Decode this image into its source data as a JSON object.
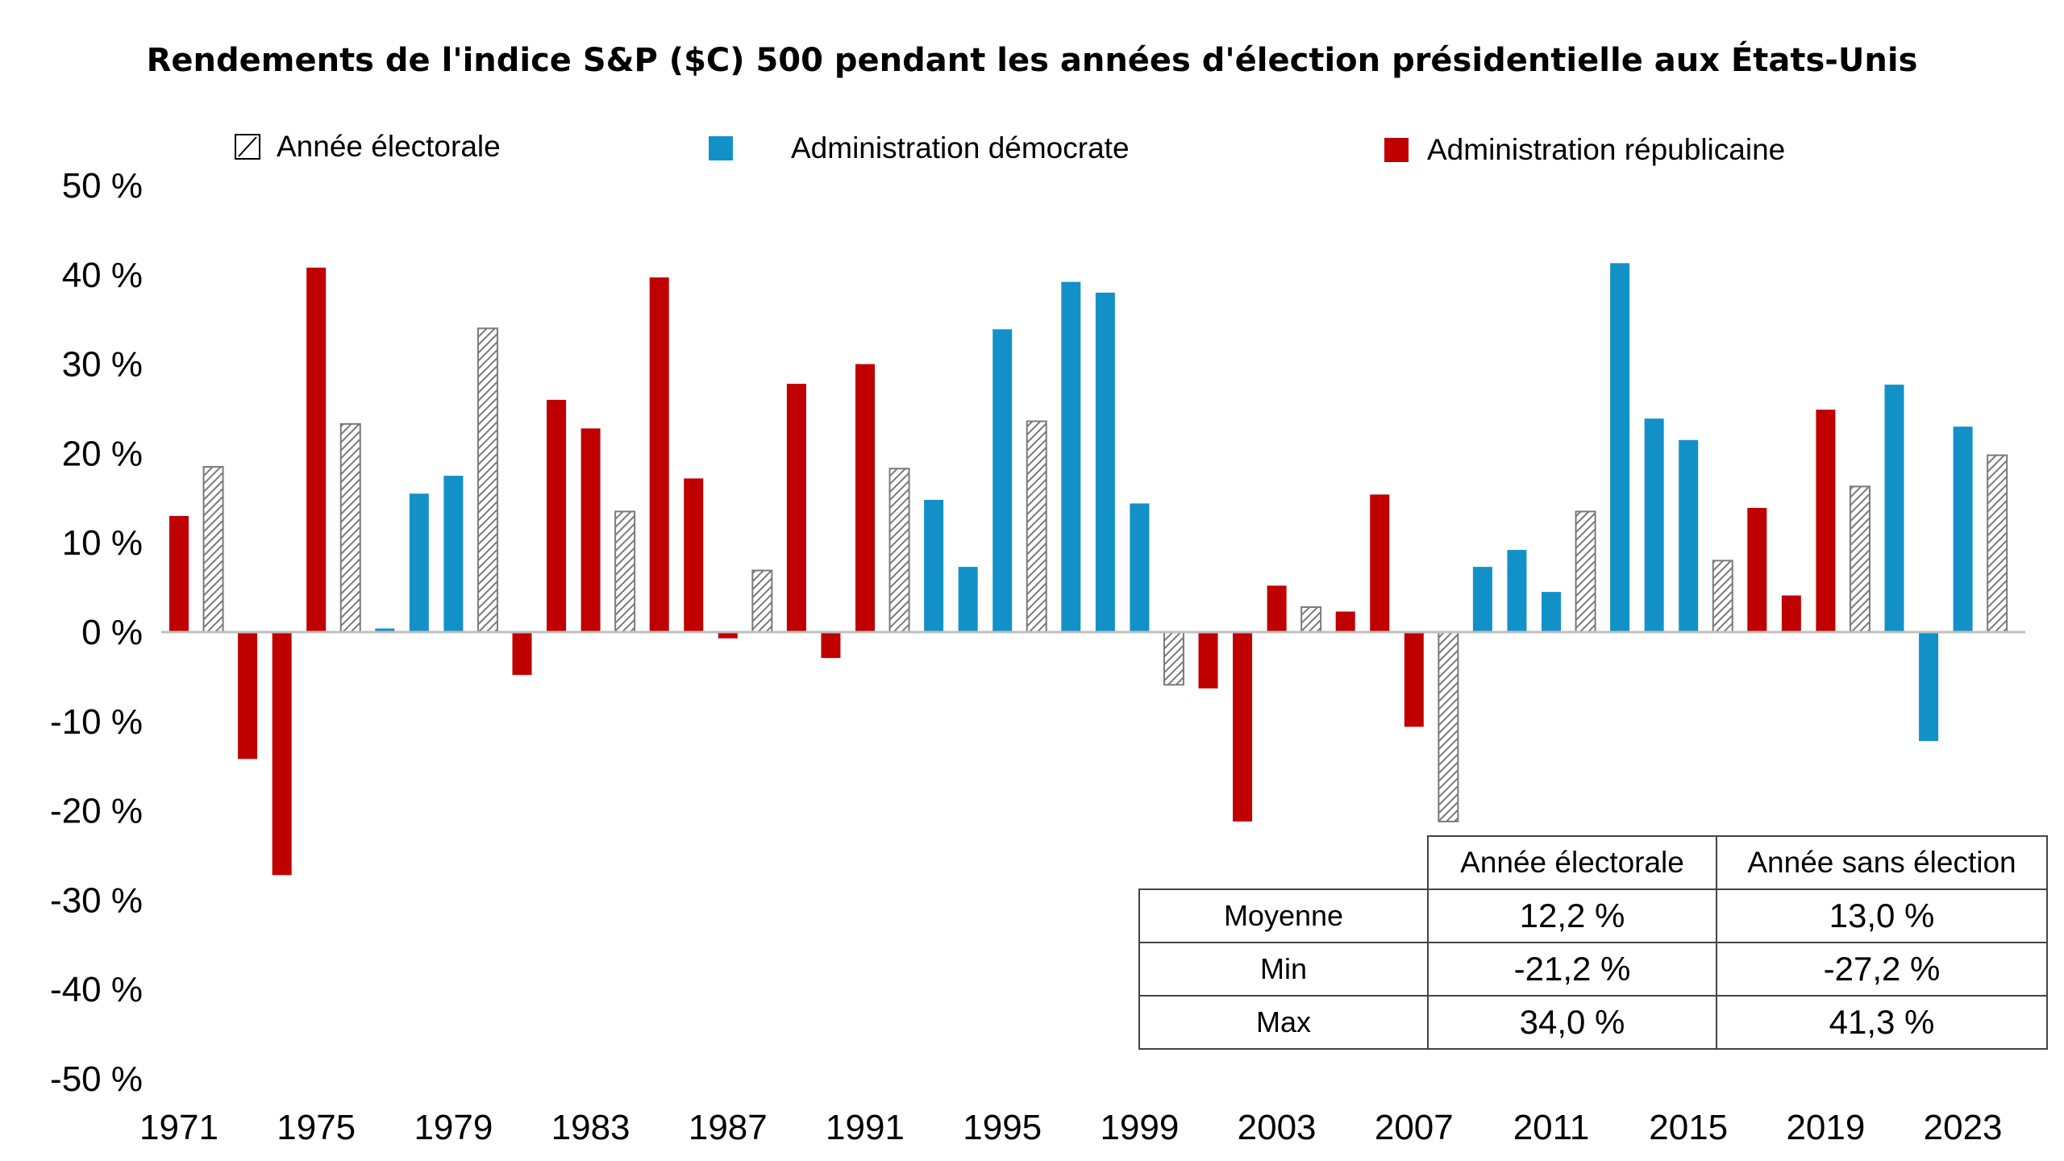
{
  "chart_data": {
    "type": "bar",
    "title": "Rendements de l'indice S&P ($C) 500 pendant les années d'élection présidentielle aux États-Unis",
    "ylim": [
      -50,
      50
    ],
    "yticks": [
      50,
      40,
      30,
      20,
      10,
      0,
      -10,
      -20,
      -30,
      -40,
      -50
    ],
    "ytick_labels": [
      "50 %",
      "40 %",
      "30 %",
      "20 %",
      "10 %",
      "0 %",
      "-10 %",
      "-20 %",
      "-30 %",
      "-40 %",
      "-50 %"
    ],
    "xtick_labels": [
      "1971",
      "1975",
      "1979",
      "1983",
      "1987",
      "1991",
      "1995",
      "1999",
      "2003",
      "2007",
      "2011",
      "2015",
      "2019",
      "2023"
    ],
    "legend": {
      "placement": "top",
      "items": [
        {
          "label": "Année électorale",
          "key": "E"
        },
        {
          "label": "Administration démocrate",
          "key": "D"
        },
        {
          "label": "Administration républicaine",
          "key": "R"
        }
      ]
    },
    "colors": {
      "D": "#1291c9",
      "R": "#c00000",
      "E_stroke": "#7a7a7a"
    },
    "years": [
      1971,
      1972,
      1973,
      1974,
      1975,
      1976,
      1977,
      1978,
      1979,
      1980,
      1981,
      1982,
      1983,
      1984,
      1985,
      1986,
      1987,
      1988,
      1989,
      1990,
      1991,
      1992,
      1993,
      1994,
      1995,
      1996,
      1997,
      1998,
      1999,
      2000,
      2001,
      2002,
      2003,
      2004,
      2005,
      2006,
      2007,
      2008,
      2009,
      2010,
      2011,
      2012,
      2013,
      2014,
      2015,
      2016,
      2017,
      2018,
      2019,
      2020,
      2021,
      2022,
      2023,
      2024
    ],
    "values": [
      13.0,
      18.5,
      -14.2,
      -27.2,
      40.8,
      23.3,
      0.4,
      15.5,
      17.5,
      34.0,
      -4.8,
      26.0,
      22.8,
      13.5,
      39.7,
      17.2,
      -0.7,
      6.9,
      27.8,
      -2.9,
      30.0,
      18.3,
      14.8,
      7.3,
      33.9,
      23.6,
      39.2,
      38.0,
      14.4,
      -5.9,
      -6.3,
      -21.2,
      5.2,
      2.8,
      2.3,
      15.4,
      -10.6,
      -21.2,
      7.3,
      9.2,
      4.5,
      13.5,
      41.3,
      23.9,
      21.5,
      8.0,
      13.9,
      4.1,
      24.9,
      16.3,
      27.7,
      -12.2,
      23.0,
      19.8
    ],
    "party": [
      "R",
      "E",
      "R",
      "R",
      "R",
      "E",
      "D",
      "D",
      "D",
      "E",
      "R",
      "R",
      "R",
      "E",
      "R",
      "R",
      "R",
      "E",
      "R",
      "R",
      "R",
      "E",
      "D",
      "D",
      "D",
      "E",
      "D",
      "D",
      "D",
      "E",
      "R",
      "R",
      "R",
      "E",
      "R",
      "R",
      "R",
      "E",
      "D",
      "D",
      "D",
      "E",
      "D",
      "D",
      "D",
      "E",
      "R",
      "R",
      "R",
      "E",
      "D",
      "D",
      "D",
      "E"
    ]
  },
  "stats_table": {
    "headers": [
      "Année électorale",
      "Année sans élection"
    ],
    "rows": [
      {
        "label": "Moyenne",
        "election": "12,2 %",
        "non_election": "13,0 %"
      },
      {
        "label": "Min",
        "election": "-21,2 %",
        "non_election": "-27,2 %"
      },
      {
        "label": "Max",
        "election": "34,0 %",
        "non_election": "41,3 %"
      }
    ]
  }
}
